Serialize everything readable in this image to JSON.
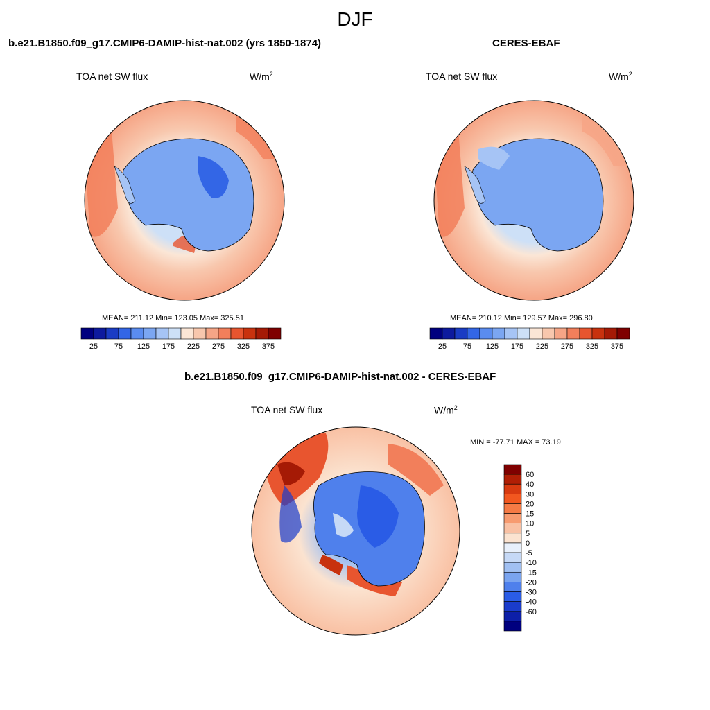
{
  "figure": {
    "title": "DJF"
  },
  "panels": [
    {
      "title": "b.e21.B1850.f09_g17.CMIP6-DAMIP-hist-nat.002 (yrs 1850-1874)",
      "variable": "TOA net SW flux",
      "units_base": "W/m",
      "units_exp": "2",
      "stats": "MEAN= 211.12  Min= 123.05  Max= 325.51"
    },
    {
      "title": "CERES-EBAF",
      "variable": "TOA net SW flux",
      "units_base": "W/m",
      "units_exp": "2",
      "stats": "MEAN= 210.12  Min= 129.57  Max= 296.80"
    },
    {
      "title": "b.e21.B1850.f09_g17.CMIP6-DAMIP-hist-nat.002 - CERES-EBAF",
      "variable": "TOA net SW flux",
      "units_base": "W/m",
      "units_exp": "2",
      "stats": "MIN = -77.71 MAX =  73.19"
    }
  ],
  "colorbar_abs": {
    "colors": [
      "#00007f",
      "#0d1a9e",
      "#1a3cc4",
      "#3366e6",
      "#5a8cf0",
      "#7ba6f2",
      "#a6c4f5",
      "#cde0f7",
      "#fbe6d6",
      "#f8c7ad",
      "#f6a586",
      "#f27f5b",
      "#e8552f",
      "#c8320e",
      "#a51a05",
      "#7f0000"
    ],
    "labels": [
      "25",
      "75",
      "125",
      "175",
      "225",
      "275",
      "325",
      "375"
    ]
  },
  "colorbar_diff": {
    "colors": [
      "#7f0000",
      "#b01e05",
      "#d83a10",
      "#f2571f",
      "#f57a45",
      "#f79b70",
      "#f9c1a4",
      "#fbe3d0",
      "#e8f0fb",
      "#c6d9f6",
      "#a1c0f2",
      "#7aa4ef",
      "#4f80ec",
      "#2a5ce6",
      "#1a3ccc",
      "#0d1fa8",
      "#00007f"
    ],
    "labels": [
      "60",
      "40",
      "30",
      "20",
      "15",
      "10",
      "5",
      "0",
      "-5",
      "-10",
      "-15",
      "-20",
      "-30",
      "-40",
      "-60"
    ]
  }
}
